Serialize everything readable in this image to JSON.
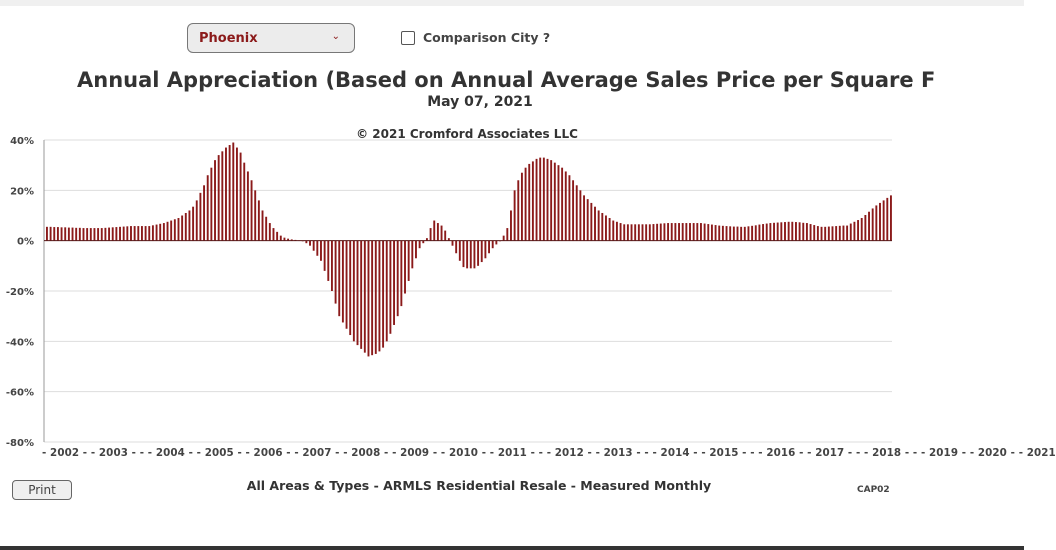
{
  "controls": {
    "city_select": "Phoenix",
    "comparison_label": "Comparison City ?",
    "comparison_checked": false,
    "print_label": "Print"
  },
  "colors": {
    "bar": "#8b1a1a",
    "grid": "#dddddd"
  },
  "chart_data": {
    "type": "bar",
    "title": "Annual Appreciation (Based on Annual Average Sales Price per Square F",
    "subtitle": "May 07, 2021",
    "annotation": "© 2021 Cromford Associates LLC",
    "xlabel": "All Areas & Types - ARMLS Residential Resale - Measured Monthly",
    "footer_code": "CAP02",
    "ylabel": "",
    "ylim": [
      -80,
      40
    ],
    "yticks": [
      "40%",
      "20%",
      "0%",
      "-20%",
      "-40%",
      "-60%",
      "-80%"
    ],
    "ytick_values": [
      40,
      20,
      0,
      -20,
      -40,
      -60,
      -80
    ],
    "x_tick_text": "- 2002 - - 2003 - - - 2004 - - 2005 - - 2006 - - 2007 - - 2008 - - 2009 - - 2010 - - 2011 - - - 2012 - - 2013 - - - 2014 - - 2015 - - - 2016 - - 2017 - - - 2018 - - - 2019 - - 2020 - - 2021",
    "frequency": "monthly",
    "grid": true,
    "values": [
      5.5,
      5.5,
      5.4,
      5.4,
      5.3,
      5.3,
      5.2,
      5.2,
      5.1,
      5.1,
      5.0,
      5.0,
      5.0,
      5.0,
      5.0,
      5.0,
      5.1,
      5.2,
      5.3,
      5.4,
      5.5,
      5.6,
      5.7,
      5.8,
      5.8,
      5.8,
      5.8,
      5.8,
      5.8,
      6.1,
      6.4,
      6.7,
      7.0,
      7.5,
      8.0,
      8.5,
      9.0,
      10,
      11,
      12,
      13.5,
      16,
      19,
      22,
      26,
      29,
      32,
      34,
      35.5,
      37,
      38,
      39,
      37,
      35,
      31,
      27.5,
      24,
      20,
      16,
      12,
      9.5,
      7,
      5,
      3.5,
      2,
      1.2,
      0.8,
      0.5,
      0.3,
      0.1,
      0,
      -1,
      -2,
      -4,
      -6,
      -8,
      -12,
      -16,
      -20,
      -25,
      -30,
      -32.5,
      -35,
      -37.5,
      -40,
      -41.5,
      -43,
      -44.5,
      -46,
      -45.5,
      -45,
      -44,
      -42.5,
      -40,
      -37,
      -33.5,
      -30,
      -26,
      -21,
      -16,
      -11,
      -7,
      -3,
      -1,
      1,
      5,
      8,
      7,
      6,
      4,
      1,
      -2,
      -5,
      -8,
      -10.5,
      -11,
      -11,
      -11,
      -10,
      -8.5,
      -7,
      -5,
      -3,
      -1.5,
      0,
      2,
      5,
      12,
      20,
      24,
      27,
      29,
      30.5,
      31.5,
      32.5,
      33,
      33,
      32.5,
      32,
      31,
      30,
      29,
      27.5,
      26,
      24,
      22,
      20,
      18,
      16.5,
      15,
      13.5,
      12,
      11,
      10,
      9,
      8,
      7.5,
      7,
      6.5,
      6.5,
      6.5,
      6.5,
      6.5,
      6.5,
      6.5,
      6.5,
      6.6,
      6.7,
      6.8,
      6.9,
      7,
      7,
      7,
      7,
      7,
      7,
      7,
      7,
      7,
      7,
      6.8,
      6.6,
      6.4,
      6.2,
      6,
      5.9,
      5.8,
      5.7,
      5.6,
      5.6,
      5.5,
      5.5,
      5.7,
      5.9,
      6.1,
      6.4,
      6.6,
      6.8,
      7,
      7.1,
      7.2,
      7.3,
      7.4,
      7.5,
      7.5,
      7.4,
      7.3,
      7.1,
      7,
      6.6,
      6.2,
      5.8,
      5.5,
      5.5,
      5.6,
      5.7,
      5.8,
      5.9,
      6,
      6,
      6.8,
      7.5,
      8.2,
      9,
      10.2,
      11.5,
      12.8,
      14,
      15,
      16,
      17,
      18
    ]
  }
}
